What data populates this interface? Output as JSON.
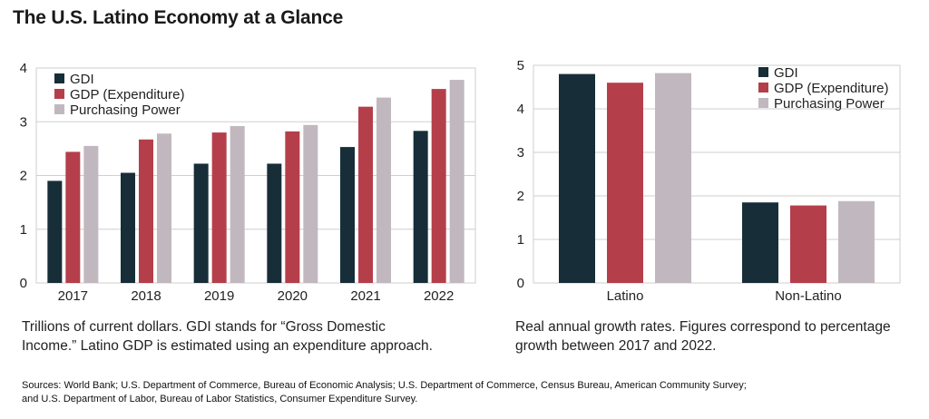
{
  "title": "The U.S. Latino Economy at a Glance",
  "colors": {
    "gdi": "#172e38",
    "gdp": "#b43f4a",
    "pp": "#c1b8bf"
  },
  "chart_data": [
    {
      "type": "bar",
      "categories": [
        "2017",
        "2018",
        "2019",
        "2020",
        "2021",
        "2022"
      ],
      "series": [
        {
          "name": "GDI",
          "values": [
            1.9,
            2.05,
            2.22,
            2.22,
            2.53,
            2.83
          ]
        },
        {
          "name": "GDP (Expenditure)",
          "values": [
            2.44,
            2.67,
            2.8,
            2.82,
            3.28,
            3.61
          ]
        },
        {
          "name": "Purchasing Power",
          "values": [
            2.55,
            2.78,
            2.92,
            2.94,
            3.45,
            3.78
          ]
        }
      ],
      "ylim": [
        0,
        4
      ],
      "yticks": [
        "0",
        "1",
        "2",
        "3",
        "4"
      ],
      "grid": true,
      "legend": "top-left",
      "caption": "Trillions of current dollars. GDI stands for “Gross Domestic Income.” Latino GDP is estimated using an expenditure approach.",
      "caption_lines": [
        "Trillions of current dollars. GDI stands for “Gross Domestic",
        "Income.” Latino GDP is estimated using an expenditure approach."
      ]
    },
    {
      "type": "bar",
      "categories": [
        "Latino",
        "Non-Latino"
      ],
      "series": [
        {
          "name": "GDI",
          "values": [
            4.8,
            1.85
          ]
        },
        {
          "name": "GDP (Expenditure)",
          "values": [
            4.6,
            1.78
          ]
        },
        {
          "name": "Purchasing Power",
          "values": [
            4.82,
            1.88
          ]
        }
      ],
      "ylim": [
        0,
        5
      ],
      "yticks": [
        "0",
        "1",
        "2",
        "3",
        "4",
        "5"
      ],
      "grid": true,
      "legend": "top-right",
      "caption": "Real annual growth rates. Figures correspond to percentage growth between 2017 and 2022.",
      "caption_lines": [
        "Real annual growth rates. Figures correspond to percentage",
        "growth between 2017 and 2022."
      ]
    }
  ],
  "sources_lines": [
    "Sources: World Bank; U.S. Department of Commerce, Bureau of Economic Analysis; U.S. Department of Commerce, Census Bureau, American Community Survey;",
    "and U.S. Department of Labor, Bureau of Labor Statistics, Consumer Expenditure Survey."
  ]
}
